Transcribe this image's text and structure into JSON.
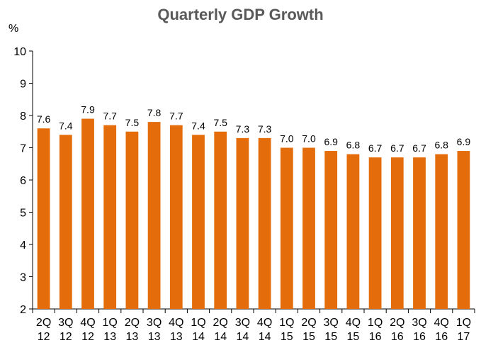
{
  "chart_data": {
    "type": "bar",
    "title": "Quarterly GDP Growth",
    "y_unit": "%",
    "xlabel": "",
    "ylabel": "",
    "ylim": [
      2,
      10
    ],
    "yticks": [
      2,
      3,
      4,
      5,
      6,
      7,
      8,
      9,
      10
    ],
    "grid": false,
    "legend": "none",
    "bar_color": "#E46C0A",
    "categories": [
      [
        "2Q",
        "12"
      ],
      [
        "3Q",
        "12"
      ],
      [
        "4Q",
        "12"
      ],
      [
        "1Q",
        "13"
      ],
      [
        "2Q",
        "13"
      ],
      [
        "3Q",
        "13"
      ],
      [
        "4Q",
        "13"
      ],
      [
        "1Q",
        "14"
      ],
      [
        "2Q",
        "14"
      ],
      [
        "3Q",
        "14"
      ],
      [
        "4Q",
        "14"
      ],
      [
        "1Q",
        "15"
      ],
      [
        "2Q",
        "15"
      ],
      [
        "3Q",
        "15"
      ],
      [
        "4Q",
        "15"
      ],
      [
        "1Q",
        "16"
      ],
      [
        "2Q",
        "16"
      ],
      [
        "3Q",
        "16"
      ],
      [
        "4Q",
        "16"
      ],
      [
        "1Q",
        "17"
      ]
    ],
    "values": [
      7.6,
      7.4,
      7.9,
      7.7,
      7.5,
      7.8,
      7.7,
      7.4,
      7.5,
      7.3,
      7.3,
      7.0,
      7.0,
      6.9,
      6.8,
      6.7,
      6.7,
      6.7,
      6.8,
      6.9
    ],
    "data_labels": [
      "7.6",
      "7.4",
      "7.9",
      "7.7",
      "7.5",
      "7.8",
      "7.7",
      "7.4",
      "7.5",
      "7.3",
      "7.3",
      "7.0",
      "7.0",
      "6.9",
      "6.8",
      "6.7",
      "6.7",
      "6.7",
      "6.8",
      "6.9"
    ]
  }
}
